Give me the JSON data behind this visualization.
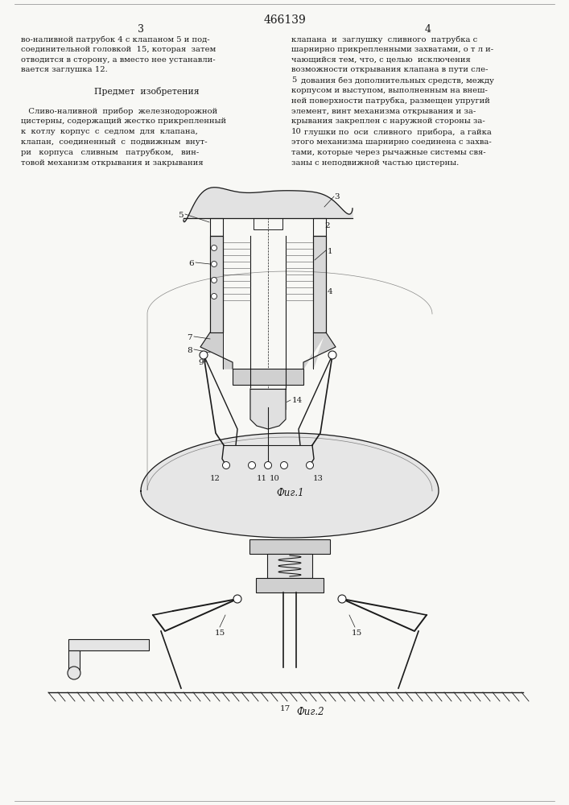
{
  "patent_number": "466139",
  "page_left": "3",
  "page_right": "4",
  "bg_color": "#f8f8f5",
  "text_color": "#1a1a1a",
  "fig1_caption": "Фиг.1",
  "fig2_caption": "Фиг.2",
  "left_col_lines": [
    "во-наливной патрубок 4 с клапаном 5 и под-",
    "соединительной головкой  15, которая  затем",
    "отводится в сторону, а вместо нее устанавли-",
    "вается заглушка 12.",
    "",
    "      Предмет  изобретения",
    "",
    "   Сливо-наливной  прибор  железнодорожной",
    "цистерны, содержащий жестко прикрепленный",
    "к  котлу  корпус  с  седлом  для  клапана,",
    "клапан,  соединенный  с  подвижным  внут-",
    "ри   корпуса   сливным   патрубком,   вин-",
    "товой механизм открывания и закрывания"
  ],
  "right_col_lines": [
    "клапана  и  заглушку  сливного  патрубка с",
    "шарнирно прикрепленными захватами, о т л и-",
    "чающийся тем, что, с целью  исключения",
    "возможности открывания клапана в пути сле-",
    "5 дования без дополнительных средств, между",
    "корпусом и выступом, выполненным на внеш-",
    "ней поверхности патрубка, размещен упругий",
    "элемент, винт механизма открывания и за-",
    "крывания закреплен с наружной стороны за-",
    "10 глушки по  оси  сливного  прибора,  а гайка",
    "этого механизма шарнирно соединена с захва-",
    "тами, которые через рычажные системы свя-",
    "заны с неподвижной частью цистерны."
  ]
}
